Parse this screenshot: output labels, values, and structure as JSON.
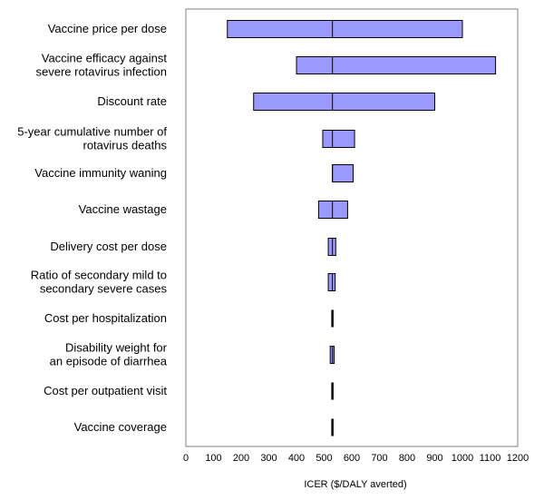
{
  "chart_data": {
    "type": "tornado",
    "xlabel": "ICER ($/DALY averted)",
    "xlim": [
      0,
      1200
    ],
    "x_ticks": [
      0,
      100,
      200,
      300,
      400,
      500,
      600,
      700,
      800,
      900,
      1000,
      1100,
      1200
    ],
    "baseline": 530,
    "bar_color": "#9999ff",
    "grid": false,
    "categories": [
      {
        "label_lines": [
          "Vaccine price per dose"
        ],
        "low": 150,
        "high": 1000
      },
      {
        "label_lines": [
          "Vaccine efficacy against",
          "severe rotavirus infection"
        ],
        "low": 400,
        "high": 1120
      },
      {
        "label_lines": [
          "Discount rate"
        ],
        "low": 245,
        "high": 900
      },
      {
        "label_lines": [
          "5-year cumulative number of",
          "rotavirus deaths"
        ],
        "low": 495,
        "high": 610
      },
      {
        "label_lines": [
          "Vaccine immunity waning"
        ],
        "low": 530,
        "high": 605
      },
      {
        "label_lines": [
          "Vaccine wastage"
        ],
        "low": 480,
        "high": 585
      },
      {
        "label_lines": [
          "Delivery cost per dose"
        ],
        "low": 515,
        "high": 542
      },
      {
        "label_lines": [
          "Ratio of secondary mild to",
          "secondary severe cases"
        ],
        "low": 515,
        "high": 540
      },
      {
        "label_lines": [
          "Cost per hospitalization"
        ],
        "low": 528,
        "high": 532
      },
      {
        "label_lines": [
          "Disability weight for",
          "an episode of diarrhea"
        ],
        "low": 522,
        "high": 536
      },
      {
        "label_lines": [
          "Cost per outpatient visit"
        ],
        "low": 528,
        "high": 532
      },
      {
        "label_lines": [
          "Vaccine coverage"
        ],
        "low": 529,
        "high": 531
      }
    ]
  }
}
